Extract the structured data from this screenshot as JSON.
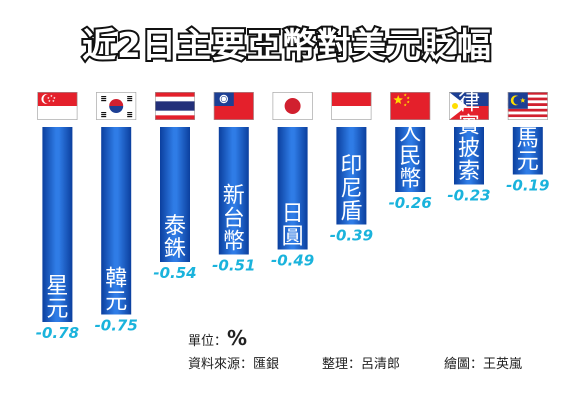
{
  "chart_data": {
    "type": "bar",
    "title": "近2日主要亞幣對美元貶幅",
    "categories": [
      "星元",
      "韓元",
      "泰銖",
      "新台幣",
      "日圓",
      "印尼盾",
      "人民幣",
      "菲律賓披索",
      "馬元"
    ],
    "values": [
      -0.78,
      -0.75,
      -0.54,
      -0.51,
      -0.49,
      -0.39,
      -0.26,
      -0.23,
      -0.19
    ],
    "value_labels": [
      "-0.78",
      "-0.75",
      "-0.54",
      "-0.51",
      "-0.49",
      "-0.39",
      "-0.26",
      "-0.23",
      "-0.19"
    ],
    "flags": [
      "singapore-flag",
      "korea-flag",
      "thailand-flag",
      "taiwan-flag",
      "japan-flag",
      "indonesia-flag",
      "china-flag",
      "philippines-flag",
      "malaysia-flag"
    ],
    "ylim": [
      -0.8,
      0
    ],
    "grid": false,
    "bar_color": "#1e5fc9",
    "value_color": "#1ab3dc"
  },
  "footer": {
    "unit_label": "單位：",
    "unit_value": "%",
    "source": "資料來源：匯銀",
    "editor": "整理：呂清郎",
    "illustrator": "繪圖：王英嵐"
  }
}
